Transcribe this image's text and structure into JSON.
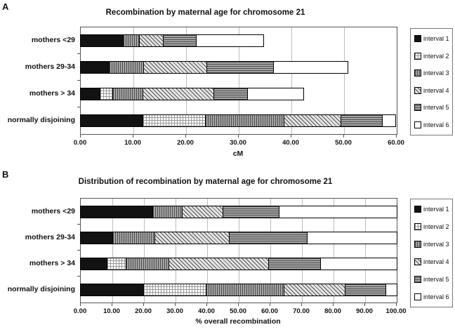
{
  "colors": {
    "bar_black": "#121212",
    "bar_gray": "#a3a3a3",
    "hatch_dark": "#4d4d4d",
    "grid_light": "#999999",
    "white": "#ffffff",
    "gridline": "#bdbdbd"
  },
  "legend": {
    "items": [
      {
        "label": "interval 1",
        "pattern": "i1"
      },
      {
        "label": "interval 2",
        "pattern": "i2"
      },
      {
        "label": "interval 3",
        "pattern": "i3"
      },
      {
        "label": "interval 4",
        "pattern": "i4"
      },
      {
        "label": "interval 5",
        "pattern": "i5"
      },
      {
        "label": "interval 6",
        "pattern": "i6"
      }
    ]
  },
  "chart_data": [
    {
      "type": "bar",
      "orientation": "horizontal",
      "stacked": true,
      "panel_letter": "A",
      "title": "Recombination by maternal age for chromosome 21",
      "xlabel": "cM",
      "xlim": [
        0,
        60
      ],
      "xticks": [
        "0.00",
        "10.00",
        "20.00",
        "30.00",
        "40.00",
        "50.00",
        "60.00"
      ],
      "grid": "vertical",
      "legend_position": "right",
      "categories": [
        "mothers <29",
        "mothers 29-34",
        "mothers > 34",
        "normally disjoining"
      ],
      "series": [
        {
          "name": "interval 1",
          "values": [
            8.1,
            5.4,
            3.7,
            11.9
          ]
        },
        {
          "name": "interval 2",
          "values": [
            0,
            0,
            2.4,
            11.8
          ]
        },
        {
          "name": "interval 3",
          "values": [
            3.1,
            6.6,
            5.8,
            15.0
          ]
        },
        {
          "name": "interval 4",
          "values": [
            4.5,
            12.0,
            13.4,
            10.7
          ]
        },
        {
          "name": "interval 5",
          "values": [
            6.3,
            12.6,
            6.4,
            7.9
          ]
        },
        {
          "name": "interval 6",
          "values": [
            12.6,
            14.1,
            10.5,
            2.4
          ]
        }
      ],
      "category_totals": [
        34.6,
        50.7,
        42.2,
        59.7
      ]
    },
    {
      "type": "bar",
      "orientation": "horizontal",
      "stacked": true,
      "panel_letter": "B",
      "title": "Distribution of recombination by maternal age for chromosome 21",
      "xlabel": "% overall recombination",
      "xlim": [
        0,
        100
      ],
      "xticks": [
        "0.00",
        "10.00",
        "20.00",
        "30.00",
        "40.00",
        "50.00",
        "60.00",
        "70.00",
        "80.00",
        "90.00",
        "100.00"
      ],
      "grid": "vertical",
      "legend_position": "right",
      "categories": [
        "mothers <29",
        "mothers 29-34",
        "mothers > 34",
        "normally disjoining"
      ],
      "series": [
        {
          "name": "interval 1",
          "values": [
            22.9,
            10.3,
            8.5,
            20.0
          ]
        },
        {
          "name": "interval 2",
          "values": [
            0,
            0,
            6.0,
            19.8
          ]
        },
        {
          "name": "interval 3",
          "values": [
            9.3,
            13.2,
            13.5,
            24.7
          ]
        },
        {
          "name": "interval 4",
          "values": [
            12.9,
            23.6,
            31.6,
            19.3
          ]
        },
        {
          "name": "interval 5",
          "values": [
            17.9,
            24.6,
            16.3,
            12.8
          ]
        },
        {
          "name": "interval 6",
          "values": [
            37.0,
            28.3,
            24.1,
            3.4
          ]
        }
      ],
      "category_totals": [
        100,
        100,
        100,
        100
      ]
    }
  ]
}
